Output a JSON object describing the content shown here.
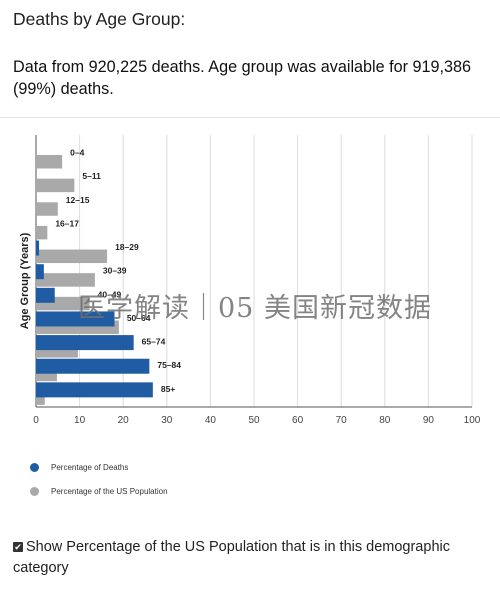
{
  "page_title": "Deaths by Age Group:",
  "subtitle": "Data from 920,225 deaths. Age group was available for 919,386 (99%) deaths.",
  "watermark": "医学解读｜05 美国新冠数据",
  "option": {
    "checkbox_glyph": "✔",
    "label": "Show Percentage of the US Population that is in this demographic category",
    "checked": true
  },
  "legend": [
    {
      "label": "Percentage of Deaths",
      "color": "#1f5ca3"
    },
    {
      "label": "Percentage of the US Population",
      "color": "#a9a9a9"
    }
  ],
  "chart_data": {
    "type": "bar",
    "orientation": "horizontal",
    "ylabel": "Age Group (Years)",
    "xlabel": "",
    "xlim": [
      0,
      100
    ],
    "xticks": [
      0,
      10,
      20,
      30,
      40,
      50,
      60,
      70,
      80,
      90,
      100
    ],
    "grid": true,
    "legend_position": "bottom-left",
    "categories": [
      "0–4",
      "5–11",
      "12–15",
      "16–17",
      "18–29",
      "30–39",
      "40–49",
      "50–64",
      "65–74",
      "75–84",
      "85+"
    ],
    "series": [
      {
        "name": "Percentage of Deaths",
        "color": "#1f5ca3",
        "values": [
          0.0,
          0.0,
          0.0,
          0.0,
          0.7,
          1.8,
          4.3,
          18.0,
          22.4,
          26.0,
          26.8
        ]
      },
      {
        "name": "Percentage of the US Population",
        "color": "#a9a9a9",
        "values": [
          6.0,
          8.8,
          5.0,
          2.6,
          16.3,
          13.5,
          12.3,
          19.0,
          9.6,
          4.8,
          2.0
        ]
      }
    ]
  }
}
